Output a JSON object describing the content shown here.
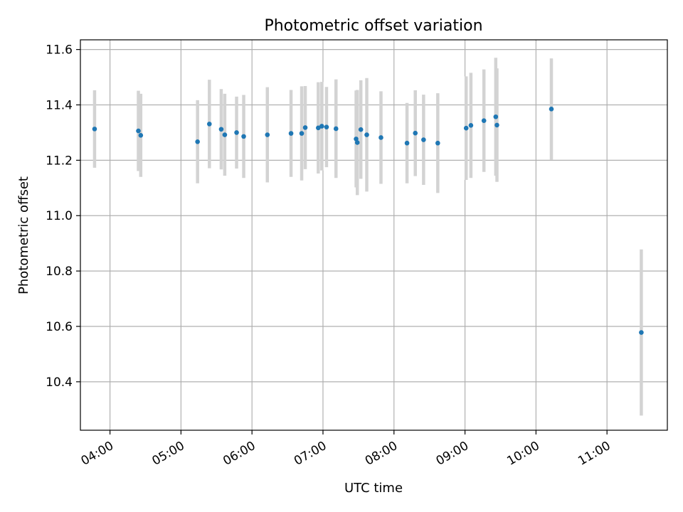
{
  "chart_data": {
    "type": "scatter",
    "title": "Photometric offset variation",
    "xlabel": "UTC time",
    "ylabel": "Photometric offset",
    "x_ticks": [
      "04:00",
      "05:00",
      "06:00",
      "07:00",
      "08:00",
      "09:00",
      "10:00",
      "11:00"
    ],
    "y_ticks": [
      "10.4",
      "10.6",
      "10.8",
      "11.0",
      "11.2",
      "11.4",
      "11.6"
    ],
    "xlim": [
      "03:35",
      "11:51"
    ],
    "ylim": [
      10.225,
      11.635
    ],
    "grid": true,
    "marker_color": "#1f77b4",
    "errorbar_color": "#d3d3d3",
    "series": [
      {
        "points": [
          {
            "t": "03:47",
            "y": 11.313,
            "err": 0.14
          },
          {
            "t": "04:24",
            "y": 11.306,
            "err": 0.145
          },
          {
            "t": "04:26",
            "y": 11.29,
            "err": 0.15
          },
          {
            "t": "05:14",
            "y": 11.267,
            "err": 0.15
          },
          {
            "t": "05:24",
            "y": 11.331,
            "err": 0.16
          },
          {
            "t": "05:34",
            "y": 11.312,
            "err": 0.145
          },
          {
            "t": "05:37",
            "y": 11.292,
            "err": 0.148
          },
          {
            "t": "05:47",
            "y": 11.3,
            "err": 0.13
          },
          {
            "t": "05:53",
            "y": 11.286,
            "err": 0.15
          },
          {
            "t": "06:13",
            "y": 11.292,
            "err": 0.172
          },
          {
            "t": "06:33",
            "y": 11.297,
            "err": 0.157
          },
          {
            "t": "06:42",
            "y": 11.297,
            "err": 0.17
          },
          {
            "t": "06:45",
            "y": 11.318,
            "err": 0.15
          },
          {
            "t": "06:56",
            "y": 11.317,
            "err": 0.165
          },
          {
            "t": "06:59",
            "y": 11.323,
            "err": 0.16
          },
          {
            "t": "07:03",
            "y": 11.32,
            "err": 0.145
          },
          {
            "t": "07:11",
            "y": 11.314,
            "err": 0.178
          },
          {
            "t": "07:28",
            "y": 11.277,
            "err": 0.175
          },
          {
            "t": "07:29",
            "y": 11.264,
            "err": 0.19
          },
          {
            "t": "07:32",
            "y": 11.311,
            "err": 0.178
          },
          {
            "t": "07:37",
            "y": 11.292,
            "err": 0.205
          },
          {
            "t": "07:49",
            "y": 11.282,
            "err": 0.167
          },
          {
            "t": "08:11",
            "y": 11.262,
            "err": 0.145
          },
          {
            "t": "08:18",
            "y": 11.298,
            "err": 0.155
          },
          {
            "t": "08:25",
            "y": 11.274,
            "err": 0.163
          },
          {
            "t": "08:37",
            "y": 11.262,
            "err": 0.18
          },
          {
            "t": "09:01",
            "y": 11.316,
            "err": 0.187
          },
          {
            "t": "09:05",
            "y": 11.326,
            "err": 0.19
          },
          {
            "t": "09:16",
            "y": 11.343,
            "err": 0.185
          },
          {
            "t": "09:26",
            "y": 11.357,
            "err": 0.213
          },
          {
            "t": "09:27",
            "y": 11.327,
            "err": 0.205
          },
          {
            "t": "10:13",
            "y": 11.385,
            "err": 0.183
          },
          {
            "t": "11:29",
            "y": 10.578,
            "err": 0.3
          }
        ]
      }
    ]
  }
}
